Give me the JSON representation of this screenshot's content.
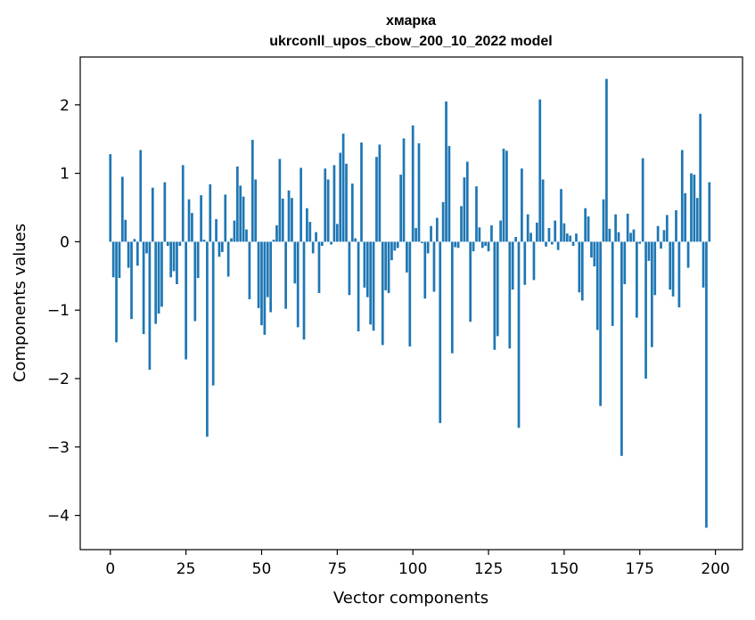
{
  "chart_data": {
    "type": "bar",
    "title_line1": "хмарка",
    "title_line2": "ukrconll_upos_cbow_200_10_2022 model",
    "xlabel": "Vector components",
    "ylabel": "Components values",
    "xlim": [
      -9.95,
      208.95
    ],
    "ylim": [
      -4.5,
      2.7
    ],
    "xticks": [
      0,
      25,
      50,
      75,
      100,
      125,
      150,
      175,
      200
    ],
    "xtick_labels": [
      "0",
      "25",
      "50",
      "75",
      "100",
      "125",
      "150",
      "175",
      "200"
    ],
    "yticks": [
      -4,
      -3,
      -2,
      -1,
      0,
      1,
      2
    ],
    "ytick_labels": [
      "−4",
      "−3",
      "−2",
      "−1",
      "0",
      "1",
      "2"
    ],
    "grid": false,
    "legend": "none",
    "bar_color": "#1f77b4",
    "values": [
      1.28,
      -0.52,
      -1.47,
      -0.53,
      0.95,
      0.32,
      -0.38,
      -1.13,
      0.04,
      -0.35,
      1.34,
      -1.35,
      -0.17,
      -1.87,
      0.79,
      -1.2,
      -1.05,
      -0.95,
      0.87,
      -0.06,
      -0.52,
      -0.43,
      -0.62,
      -0.06,
      1.12,
      -1.72,
      0.62,
      0.42,
      -1.16,
      -0.53,
      0.68,
      0.03,
      -2.85,
      0.84,
      -2.1,
      0.33,
      -0.22,
      -0.15,
      0.69,
      -0.51,
      0.05,
      0.31,
      1.1,
      0.82,
      0.66,
      0.18,
      -0.84,
      1.49,
      0.91,
      -0.97,
      -1.22,
      -1.36,
      -0.81,
      -1.03,
      0.03,
      0.24,
      1.21,
      0.63,
      -0.98,
      0.75,
      0.64,
      -0.61,
      -1.25,
      1.08,
      -1.43,
      0.49,
      0.29,
      -0.17,
      0.14,
      -0.75,
      -0.06,
      1.07,
      0.91,
      -0.04,
      1.12,
      0.26,
      1.3,
      1.58,
      1.14,
      -0.78,
      0.85,
      0.05,
      -1.31,
      1.45,
      -0.67,
      -0.81,
      -1.21,
      -1.3,
      1.24,
      1.42,
      -1.51,
      -0.71,
      -0.75,
      -0.27,
      -0.13,
      -0.09,
      0.98,
      1.51,
      -0.45,
      -1.53,
      1.7,
      0.2,
      1.44,
      -0.02,
      -0.83,
      -0.17,
      0.23,
      -0.73,
      0.35,
      -2.65,
      0.58,
      2.05,
      1.4,
      -1.63,
      -0.08,
      -0.09,
      0.52,
      0.94,
      1.17,
      -1.17,
      -0.14,
      0.81,
      0.21,
      -0.09,
      -0.06,
      -0.14,
      0.24,
      -1.58,
      -1.38,
      0.31,
      1.36,
      1.33,
      -1.56,
      -0.7,
      0.07,
      -2.72,
      1.07,
      -0.63,
      0.4,
      0.13,
      -0.56,
      0.28,
      2.08,
      0.91,
      -0.07,
      0.2,
      -0.04,
      0.31,
      -0.12,
      0.77,
      0.27,
      0.12,
      0.09,
      -0.06,
      0.12,
      -0.74,
      -0.86,
      0.49,
      0.37,
      -0.23,
      -0.36,
      -1.29,
      -2.4,
      0.62,
      2.38,
      0.19,
      -1.23,
      0.4,
      0.14,
      -3.13,
      -0.62,
      0.41,
      0.13,
      0.18,
      -1.11,
      -0.03,
      1.22,
      -2.0,
      -0.28,
      -1.54,
      -0.78,
      0.23,
      -0.1,
      0.17,
      0.39,
      -0.7,
      -0.8,
      0.46,
      -0.96,
      1.34,
      0.71,
      -0.38,
      1.0,
      0.98,
      0.64,
      1.87,
      -0.67,
      -4.18,
      0.87
    ]
  }
}
